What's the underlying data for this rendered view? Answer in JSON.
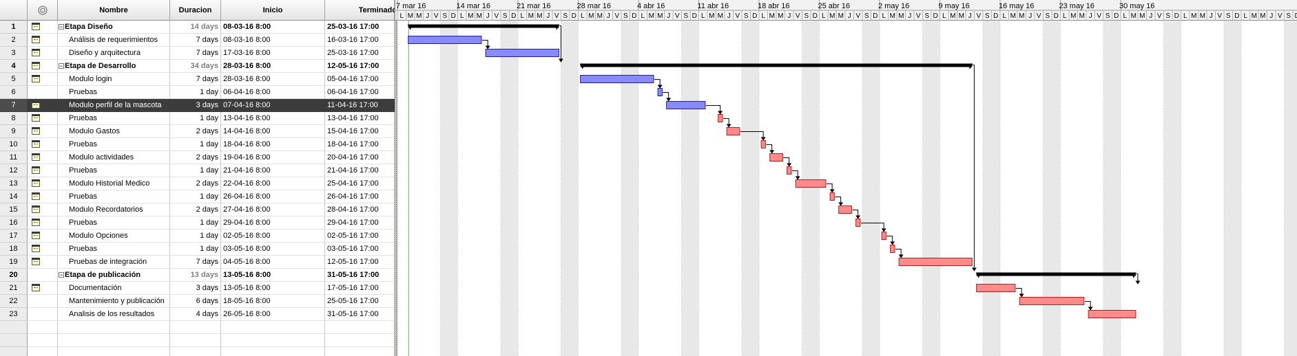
{
  "columns": {
    "indicator_icon": "info-circle-icon",
    "name": "Nombre",
    "duration": "Duracion",
    "start": "Inicio",
    "finish": "Terminado"
  },
  "colors": {
    "summary_bar": "#000000",
    "task_blue_fill": "#8a8aff",
    "task_blue_border": "#1d1d9c",
    "task_red_fill": "#ff8a8a",
    "task_red_border": "#b01c1c",
    "weekend_shade": "#e8e8e8",
    "selected_row": "#3c3c3c",
    "today_line": "#44c444"
  },
  "tasks": [
    {
      "id": "1",
      "name": "Etapa Diseño",
      "duration": "14 days",
      "start": "08-03-16 8:00",
      "finish": "25-03-16 17:00",
      "summary": true,
      "icon": "calendar-note-icon"
    },
    {
      "id": "2",
      "name": "Análisis de requerimientos",
      "duration": "7 days",
      "start": "08-03-16 8:00",
      "finish": "16-03-16 17:00",
      "icon": "calendar-note-icon"
    },
    {
      "id": "3",
      "name": "Diseño y arquitectura",
      "duration": "7 days",
      "start": "17-03-16 8:00",
      "finish": "25-03-16 17:00",
      "icon": "calendar-note-icon"
    },
    {
      "id": "4",
      "name": "Etapa de Desarrollo",
      "duration": "34 days",
      "start": "28-03-16 8:00",
      "finish": "12-05-16 17:00",
      "summary": true,
      "icon": "calendar-note-icon"
    },
    {
      "id": "5",
      "name": "Modulo login",
      "duration": "7 days",
      "start": "28-03-16 8:00",
      "finish": "05-04-16 17:00",
      "icon": "calendar-note-icon"
    },
    {
      "id": "6",
      "name": "Pruebas",
      "duration": "1 day",
      "start": "06-04-16 8:00",
      "finish": "06-04-16 17:00"
    },
    {
      "id": "7",
      "name": "Modulo perfil de la mascota",
      "duration": "3 days",
      "start": "07-04-16 8:00",
      "finish": "11-04-16 17:00",
      "icon": "calendar-note-icon",
      "selected": true
    },
    {
      "id": "8",
      "name": "Pruebas",
      "duration": "1 day",
      "start": "13-04-16 8:00",
      "finish": "13-04-16 17:00",
      "icon": "calendar-note-icon"
    },
    {
      "id": "9",
      "name": "Modulo Gastos",
      "duration": "2 days",
      "start": "14-04-16 8:00",
      "finish": "15-04-16 17:00",
      "icon": "calendar-note-icon"
    },
    {
      "id": "10",
      "name": "Pruebas",
      "duration": "1 day",
      "start": "18-04-16 8:00",
      "finish": "18-04-16 17:00",
      "icon": "calendar-note-icon"
    },
    {
      "id": "11",
      "name": "Modulo actividades",
      "duration": "2 days",
      "start": "19-04-16 8:00",
      "finish": "20-04-16 17:00",
      "icon": "calendar-note-icon"
    },
    {
      "id": "12",
      "name": "Pruebas",
      "duration": "1 day",
      "start": "21-04-16 8:00",
      "finish": "21-04-16 17:00",
      "icon": "calendar-note-icon"
    },
    {
      "id": "13",
      "name": "Modulo Historial Medico",
      "duration": "2 days",
      "start": "22-04-16 8:00",
      "finish": "25-04-16 17:00",
      "icon": "calendar-note-icon"
    },
    {
      "id": "14",
      "name": "Pruebas",
      "duration": "1 day",
      "start": "26-04-16 8:00",
      "finish": "26-04-16 17:00",
      "icon": "calendar-note-icon"
    },
    {
      "id": "15",
      "name": "Modulo Recordatorios",
      "duration": "2 days",
      "start": "27-04-16 8:00",
      "finish": "28-04-16 17:00",
      "icon": "calendar-note-icon"
    },
    {
      "id": "16",
      "name": "Pruebas",
      "duration": "1 day",
      "start": "29-04-16 8:00",
      "finish": "29-04-16 17:00",
      "icon": "calendar-note-icon"
    },
    {
      "id": "17",
      "name": "Modulo Opciones",
      "duration": "1 day",
      "start": "02-05-16 8:00",
      "finish": "02-05-16 17:00",
      "icon": "calendar-note-icon"
    },
    {
      "id": "18",
      "name": "Pruebas",
      "duration": "1 day",
      "start": "03-05-16 8:00",
      "finish": "03-05-16 17:00",
      "icon": "calendar-note-icon"
    },
    {
      "id": "19",
      "name": "Pruebas de integración",
      "duration": "7 days",
      "start": "04-05-16 8:00",
      "finish": "12-05-16 17:00",
      "icon": "calendar-note-icon"
    },
    {
      "id": "20",
      "name": "Etapa de publicación",
      "duration": "13 days",
      "start": "13-05-16 8:00",
      "finish": "31-05-16 17:00",
      "summary": true
    },
    {
      "id": "21",
      "name": "Documentación",
      "duration": "3 days",
      "start": "13-05-16 8:00",
      "finish": "17-05-16 17:00",
      "icon": "calendar-note-icon"
    },
    {
      "id": "22",
      "name": "Mantenimiento y publicación",
      "duration": "6 days",
      "start": "18-05-16 8:00",
      "finish": "25-05-16 17:00"
    },
    {
      "id": "23",
      "name": "Analisis de los resultados",
      "duration": "4 days",
      "start": "26-05-16 8:00",
      "finish": "31-05-16 17:00"
    }
  ],
  "timeline": {
    "weeks": [
      "7 mar 16",
      "14 mar 16",
      "21 mar 16",
      "28 mar 16",
      "4 abr 16",
      "11 abr 16",
      "18 abr 16",
      "25 abr 16",
      "2 may 16",
      "9 may 16",
      "16 may 16",
      "23 may 16",
      "30 may 16"
    ],
    "day_letters": [
      "L",
      "M",
      "M",
      "J",
      "V",
      "S",
      "D"
    ]
  },
  "bars": [
    {
      "row": 0,
      "type": "summary",
      "from": "2016-03-08",
      "to": "2016-03-25"
    },
    {
      "row": 1,
      "type": "task",
      "color": "blue",
      "from": "2016-03-08",
      "to": "2016-03-16"
    },
    {
      "row": 2,
      "type": "task",
      "color": "blue",
      "from": "2016-03-17",
      "to": "2016-03-25"
    },
    {
      "row": 3,
      "type": "summary",
      "from": "2016-03-28",
      "to": "2016-05-12"
    },
    {
      "row": 4,
      "type": "task",
      "color": "blue",
      "from": "2016-03-28",
      "to": "2016-04-05"
    },
    {
      "row": 5,
      "type": "task",
      "color": "blue",
      "from": "2016-04-06",
      "to": "2016-04-06"
    },
    {
      "row": 6,
      "type": "task",
      "color": "blue",
      "from": "2016-04-07",
      "to": "2016-04-11"
    },
    {
      "row": 7,
      "type": "task",
      "color": "red",
      "from": "2016-04-13",
      "to": "2016-04-13"
    },
    {
      "row": 8,
      "type": "task",
      "color": "red",
      "from": "2016-04-14",
      "to": "2016-04-15"
    },
    {
      "row": 9,
      "type": "task",
      "color": "red",
      "from": "2016-04-18",
      "to": "2016-04-18"
    },
    {
      "row": 10,
      "type": "task",
      "color": "red",
      "from": "2016-04-19",
      "to": "2016-04-20"
    },
    {
      "row": 11,
      "type": "task",
      "color": "red",
      "from": "2016-04-21",
      "to": "2016-04-21"
    },
    {
      "row": 12,
      "type": "task",
      "color": "red",
      "from": "2016-04-22",
      "to": "2016-04-25"
    },
    {
      "row": 13,
      "type": "task",
      "color": "red",
      "from": "2016-04-26",
      "to": "2016-04-26"
    },
    {
      "row": 14,
      "type": "task",
      "color": "red",
      "from": "2016-04-27",
      "to": "2016-04-28"
    },
    {
      "row": 15,
      "type": "task",
      "color": "red",
      "from": "2016-04-29",
      "to": "2016-04-29"
    },
    {
      "row": 16,
      "type": "task",
      "color": "red",
      "from": "2016-05-02",
      "to": "2016-05-02"
    },
    {
      "row": 17,
      "type": "task",
      "color": "red",
      "from": "2016-05-03",
      "to": "2016-05-03"
    },
    {
      "row": 18,
      "type": "task",
      "color": "red",
      "from": "2016-05-04",
      "to": "2016-05-12"
    },
    {
      "row": 19,
      "type": "summary",
      "from": "2016-05-13",
      "to": "2016-05-31"
    },
    {
      "row": 20,
      "type": "task",
      "color": "red",
      "from": "2016-05-13",
      "to": "2016-05-17"
    },
    {
      "row": 21,
      "type": "task",
      "color": "red",
      "from": "2016-05-18",
      "to": "2016-05-25"
    },
    {
      "row": 22,
      "type": "task",
      "color": "red",
      "from": "2016-05-26",
      "to": "2016-05-31"
    }
  ],
  "links": [
    [
      0,
      3
    ],
    [
      1,
      2
    ],
    [
      3,
      19
    ],
    [
      4,
      5
    ],
    [
      5,
      6
    ],
    [
      6,
      7
    ],
    [
      7,
      8
    ],
    [
      8,
      9
    ],
    [
      9,
      10
    ],
    [
      10,
      11
    ],
    [
      11,
      12
    ],
    [
      12,
      13
    ],
    [
      13,
      14
    ],
    [
      14,
      15
    ],
    [
      15,
      16
    ],
    [
      16,
      17
    ],
    [
      17,
      18
    ],
    [
      19,
      20
    ],
    [
      20,
      21
    ],
    [
      21,
      22
    ]
  ],
  "today": "2016-03-08"
}
